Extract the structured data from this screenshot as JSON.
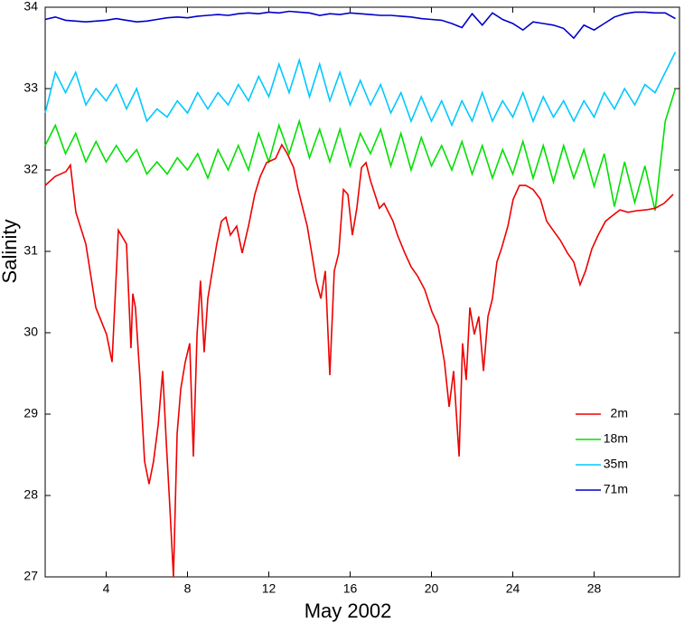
{
  "chart_data": {
    "type": "line",
    "xlabel": "May 2002",
    "ylabel": "Salinity",
    "xlim": [
      1,
      32.2
    ],
    "ylim": [
      27,
      34
    ],
    "xticks": [
      4,
      8,
      12,
      16,
      20,
      24,
      28
    ],
    "yticks": [
      27,
      28,
      29,
      30,
      31,
      32,
      33,
      34
    ],
    "legend": "lower right",
    "x": [
      1,
      1.5,
      2,
      2.5,
      3,
      3.5,
      4,
      4.5,
      5,
      5.5,
      6,
      6.5,
      7,
      7.5,
      8,
      8.5,
      9,
      9.5,
      10,
      10.5,
      11,
      11.5,
      12,
      12.5,
      13,
      13.5,
      14,
      14.5,
      15,
      15.5,
      16,
      16.5,
      17,
      17.5,
      18,
      18.5,
      19,
      19.5,
      20,
      20.5,
      21,
      21.5,
      22,
      22.5,
      23,
      23.5,
      24,
      24.5,
      25,
      25.5,
      26,
      26.5,
      27,
      27.5,
      28,
      28.5,
      29,
      29.5,
      30,
      30.5,
      31,
      31.5,
      32
    ],
    "series": [
      {
        "name": "2m",
        "color": "#ee0000",
        "x": [
          1.0,
          1.49,
          2.02,
          2.24,
          2.51,
          3.0,
          3.49,
          4.02,
          4.29,
          4.6,
          5.0,
          5.22,
          5.31,
          5.44,
          5.67,
          5.89,
          6.11,
          6.33,
          6.56,
          6.78,
          6.96,
          7.13,
          7.31,
          7.49,
          7.67,
          7.89,
          8.11,
          8.29,
          8.47,
          8.64,
          8.82,
          9.0,
          9.22,
          9.44,
          9.67,
          9.89,
          10.11,
          10.42,
          10.69,
          11.0,
          11.31,
          11.58,
          11.89,
          12.33,
          12.64,
          12.91,
          13.22,
          13.44,
          13.67,
          13.89,
          14.11,
          14.33,
          14.56,
          14.78,
          15.0,
          15.22,
          15.44,
          15.67,
          15.89,
          16.11,
          16.33,
          16.56,
          16.78,
          17.0,
          17.22,
          17.44,
          17.67,
          17.89,
          18.11,
          18.33,
          18.69,
          19.0,
          19.31,
          19.67,
          20.02,
          20.33,
          20.64,
          20.87,
          21.09,
          21.36,
          21.53,
          21.71,
          21.89,
          22.11,
          22.33,
          22.56,
          22.78,
          23.0,
          23.22,
          23.44,
          23.76,
          24.02,
          24.33,
          24.64,
          25.0,
          25.36,
          25.67,
          25.98,
          26.33,
          26.69,
          27.0,
          27.31,
          27.58,
          27.89,
          28.2,
          28.56,
          28.91,
          29.27,
          29.67,
          30.11,
          30.56,
          31.0,
          31.44,
          31.89
        ],
        "values": [
          31.81,
          31.92,
          31.98,
          32.06,
          31.48,
          31.09,
          30.31,
          29.98,
          29.64,
          31.26,
          31.09,
          29.81,
          30.48,
          30.31,
          29.42,
          28.42,
          28.14,
          28.42,
          28.87,
          29.53,
          28.64,
          27.87,
          27.0,
          28.76,
          29.31,
          29.64,
          29.87,
          28.48,
          29.98,
          30.64,
          29.76,
          30.42,
          30.76,
          31.09,
          31.37,
          31.42,
          31.2,
          31.31,
          30.98,
          31.31,
          31.7,
          31.92,
          32.09,
          32.14,
          32.31,
          32.2,
          32.03,
          31.76,
          31.53,
          31.31,
          30.98,
          30.64,
          30.42,
          30.76,
          29.48,
          30.76,
          30.98,
          31.76,
          31.7,
          31.2,
          31.53,
          32.03,
          32.09,
          31.87,
          31.7,
          31.53,
          31.59,
          31.48,
          31.37,
          31.2,
          30.98,
          30.81,
          30.7,
          30.53,
          30.26,
          30.09,
          29.64,
          29.09,
          29.53,
          28.48,
          29.87,
          29.42,
          30.31,
          29.98,
          30.2,
          29.53,
          30.2,
          30.42,
          30.87,
          31.03,
          31.31,
          31.64,
          31.81,
          31.81,
          31.76,
          31.64,
          31.37,
          31.26,
          31.14,
          30.98,
          30.87,
          30.59,
          30.76,
          31.03,
          31.2,
          31.37,
          31.44,
          31.51,
          31.48,
          31.5,
          31.51,
          31.53,
          31.59,
          31.7
        ]
      },
      {
        "name": "18m",
        "color": "#00e000",
        "values": [
          32.3,
          32.55,
          32.2,
          32.45,
          32.1,
          32.35,
          32.1,
          32.3,
          32.1,
          32.25,
          31.95,
          32.1,
          31.95,
          32.15,
          32.0,
          32.2,
          31.9,
          32.25,
          32.0,
          32.3,
          32.0,
          32.45,
          32.1,
          32.55,
          32.2,
          32.6,
          32.15,
          32.5,
          32.1,
          32.5,
          32.05,
          32.45,
          32.2,
          32.5,
          32.05,
          32.45,
          32.0,
          32.4,
          32.05,
          32.3,
          32.0,
          32.35,
          31.95,
          32.3,
          31.9,
          32.25,
          31.95,
          32.35,
          31.9,
          32.3,
          31.85,
          32.3,
          31.9,
          32.25,
          31.8,
          32.2,
          31.55,
          32.1,
          31.6,
          32.05,
          31.5,
          32.6,
          33.0
        ]
      },
      {
        "name": "35m",
        "color": "#00c8ff",
        "values": [
          32.7,
          33.2,
          32.95,
          33.2,
          32.8,
          33.0,
          32.85,
          33.05,
          32.75,
          33.0,
          32.6,
          32.75,
          32.65,
          32.85,
          32.7,
          32.95,
          32.75,
          32.95,
          32.8,
          33.05,
          32.85,
          33.15,
          32.9,
          33.3,
          32.95,
          33.35,
          32.9,
          33.3,
          32.85,
          33.2,
          32.8,
          33.1,
          32.8,
          33.05,
          32.7,
          32.95,
          32.6,
          32.9,
          32.6,
          32.85,
          32.55,
          32.85,
          32.6,
          32.95,
          32.6,
          32.85,
          32.65,
          32.95,
          32.6,
          32.9,
          32.65,
          32.85,
          32.6,
          32.85,
          32.65,
          32.95,
          32.75,
          33.0,
          32.8,
          33.05,
          32.95,
          33.2,
          33.45
        ]
      },
      {
        "name": "71m",
        "color": "#0000cc",
        "values": [
          33.85,
          33.88,
          33.84,
          33.83,
          33.82,
          33.83,
          33.84,
          33.86,
          33.84,
          33.82,
          33.83,
          33.85,
          33.87,
          33.88,
          33.87,
          33.89,
          33.9,
          33.91,
          33.9,
          33.92,
          33.93,
          33.92,
          33.94,
          33.93,
          33.95,
          33.94,
          33.93,
          33.9,
          33.92,
          33.91,
          33.93,
          33.92,
          33.91,
          33.9,
          33.9,
          33.89,
          33.88,
          33.86,
          33.85,
          33.84,
          33.8,
          33.75,
          33.92,
          33.78,
          33.93,
          33.85,
          33.8,
          33.72,
          33.82,
          33.8,
          33.78,
          33.74,
          33.62,
          33.78,
          33.72,
          33.8,
          33.88,
          33.92,
          33.94,
          33.94,
          33.93,
          33.93,
          33.86
        ]
      }
    ]
  }
}
